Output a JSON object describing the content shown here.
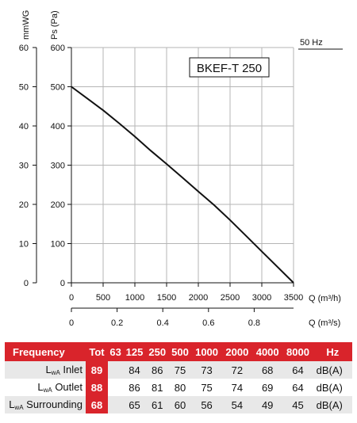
{
  "chart_data": {
    "type": "line",
    "frequency_note": "50 Hz",
    "model_label": "BKEF-T 250",
    "y_left_label": "mmWG",
    "y_right_label": "Ps (Pa)",
    "x_label": "Q (m³/h)",
    "x2_label": "Q (m³/s)",
    "xlim": [
      0,
      3500
    ],
    "ylim": [
      0,
      600
    ],
    "y_left_ticks": [
      0,
      10,
      20,
      30,
      40,
      50,
      60
    ],
    "y_right_ticks": [
      0,
      100,
      200,
      300,
      400,
      500,
      600
    ],
    "x_ticks": [
      0,
      500,
      1000,
      1500,
      2000,
      2500,
      3000,
      3500
    ],
    "x2_ticks": [
      0,
      0.2,
      0.4,
      0.6,
      0.8
    ],
    "grid": true,
    "series": [
      {
        "x": [
          0,
          250,
          500,
          750,
          1000,
          1250,
          1500,
          1750,
          2000,
          2250,
          2500,
          2750,
          3000,
          3250,
          3500
        ],
        "y": [
          500,
          470,
          440,
          407,
          373,
          337,
          303,
          268,
          233,
          198,
          160,
          120,
          80,
          40,
          0
        ]
      }
    ]
  },
  "table": {
    "header": [
      "Frequency",
      "Tot",
      "63",
      "125",
      "250",
      "500",
      "1000",
      "2000",
      "4000",
      "8000",
      "Hz"
    ],
    "rows": [
      {
        "prefix": "L",
        "sub": "wA",
        "label": "Inlet",
        "tot": "89",
        "values": [
          "",
          "84",
          "86",
          "75",
          "73",
          "72",
          "68",
          "64"
        ],
        "unit": "dB(A)"
      },
      {
        "prefix": "L",
        "sub": "wA",
        "label": "Outlet",
        "tot": "88",
        "values": [
          "",
          "86",
          "81",
          "80",
          "75",
          "74",
          "69",
          "64"
        ],
        "unit": "dB(A)"
      },
      {
        "prefix": "L",
        "sub": "wA",
        "label": "Surrounding",
        "tot": "68",
        "values": [
          "",
          "65",
          "61",
          "60",
          "56",
          "54",
          "49",
          "45"
        ],
        "unit": "dB(A)"
      }
    ]
  }
}
